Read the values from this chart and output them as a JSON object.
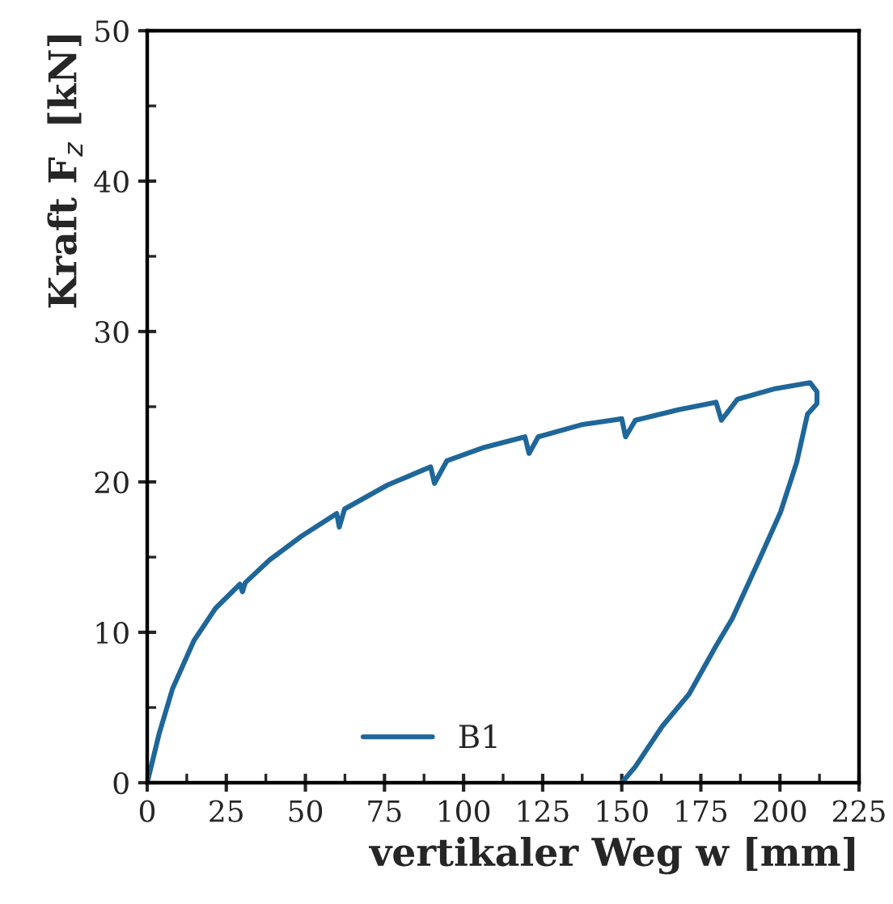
{
  "chart_data": {
    "type": "line",
    "xlabel": "vertikaler Weg w [mm]",
    "ylabel": "Kraft F$_{z}$ [kN]",
    "xlim": [
      0,
      225
    ],
    "xticks": [
      0,
      25,
      50,
      75,
      100,
      125,
      150,
      175,
      200,
      225
    ],
    "ylim": [
      0,
      50
    ],
    "yticks": [
      0,
      10,
      20,
      30,
      40,
      50
    ],
    "grid": false,
    "legend": "bottom",
    "marker": "none",
    "line_style": "solid",
    "series": [
      {
        "name": "B1",
        "color": "#1f6699",
        "x": [
          0,
          3.7,
          8.0,
          14.8,
          21.6,
          29.3,
          30.1,
          31,
          38.6,
          48.8,
          59.9,
          60.7,
          62.4,
          76,
          89.6,
          90.8,
          94.7,
          106.6,
          119.4,
          120.7,
          123.6,
          137.2,
          150,
          151.2,
          154.3,
          167.9,
          179.8,
          181.5,
          186.6,
          198.5,
          209.5,
          211.7,
          211.7,
          208.7,
          205.3,
          200.2,
          193.4,
          184.9,
          179.8,
          171.3,
          162.8,
          154.3,
          150
        ],
        "values": [
          0,
          3.2,
          6.25,
          9.46,
          11.6,
          13.2,
          12.7,
          13.3,
          14.8,
          16.4,
          17.9,
          17.0,
          18.2,
          19.8,
          21.0,
          19.9,
          21.4,
          22.3,
          23.0,
          21.9,
          23.0,
          23.8,
          24.2,
          23.0,
          24.1,
          24.8,
          25.3,
          24.1,
          25.5,
          26.2,
          26.6,
          26.0,
          25.2,
          24.5,
          21.3,
          18.0,
          14.8,
          10.9,
          9.1,
          5.9,
          3.75,
          1.07,
          0
        ]
      }
    ]
  }
}
